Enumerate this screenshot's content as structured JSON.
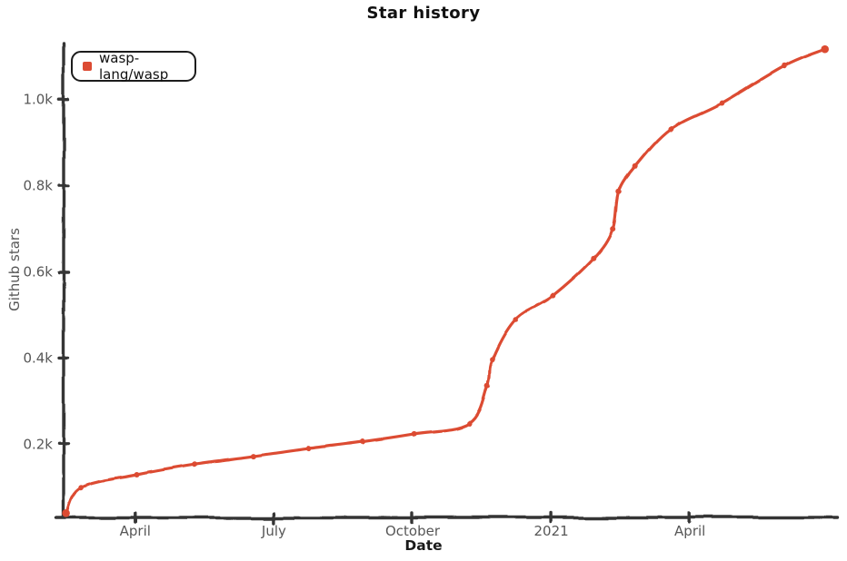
{
  "title": "Star history",
  "legend": {
    "items": [
      {
        "label": "wasp-lang/wasp",
        "color": "#dc4b33"
      }
    ]
  },
  "axes": {
    "x_label": "Date",
    "y_label": "Github stars"
  },
  "chart_data": {
    "type": "line",
    "title": "Star history",
    "xlabel": "Date",
    "ylabel": "Github stars",
    "grid": false,
    "legend_position": "top-left",
    "style": "xkcd-hand-drawn",
    "colors": {
      "series": "#dc4b33",
      "axis": "#343434",
      "tick_label": "#575757",
      "axis_label": "#1a1a1a",
      "title": "#111111",
      "background": "#ffffff"
    },
    "x_ticks": [
      {
        "label": "April",
        "date": "2020-04-01"
      },
      {
        "label": "July",
        "date": "2020-07-01"
      },
      {
        "label": "October",
        "date": "2020-10-01"
      },
      {
        "label": "2021",
        "date": "2021-01-01"
      },
      {
        "label": "April",
        "date": "2021-04-01"
      }
    ],
    "y_ticks": [
      {
        "label": "0.2k",
        "value": 200
      },
      {
        "label": "0.4k",
        "value": 400
      },
      {
        "label": "0.6k",
        "value": 600
      },
      {
        "label": "0.8k",
        "value": 800
      },
      {
        "label": "1.0k",
        "value": 1000
      }
    ],
    "xlim_months_since_2020_01": [
      1.45,
      18.2
    ],
    "ylim": [
      30,
      1130
    ],
    "series": [
      {
        "name": "wasp-lang/wasp",
        "color": "#dc4b33",
        "points": [
          {
            "date": "2020-02-16",
            "stars": 40
          },
          {
            "date": "2020-02-26",
            "stars": 100
          },
          {
            "date": "2020-04-02",
            "stars": 130
          },
          {
            "date": "2020-05-10",
            "stars": 154
          },
          {
            "date": "2020-06-18",
            "stars": 172
          },
          {
            "date": "2020-07-24",
            "stars": 190
          },
          {
            "date": "2020-08-29",
            "stars": 206
          },
          {
            "date": "2020-10-02",
            "stars": 224
          },
          {
            "date": "2020-11-08",
            "stars": 248
          },
          {
            "date": "2020-11-20",
            "stars": 336
          },
          {
            "date": "2020-11-23",
            "stars": 396
          },
          {
            "date": "2020-12-08",
            "stars": 490
          },
          {
            "date": "2021-01-02",
            "stars": 545
          },
          {
            "date": "2021-01-29",
            "stars": 632
          },
          {
            "date": "2021-02-11",
            "stars": 700
          },
          {
            "date": "2021-02-15",
            "stars": 786
          },
          {
            "date": "2021-02-26",
            "stars": 845
          },
          {
            "date": "2021-03-19",
            "stars": 932
          },
          {
            "date": "2021-04-22",
            "stars": 992
          },
          {
            "date": "2021-06-02",
            "stars": 1078
          },
          {
            "date": "2021-06-29",
            "stars": 1117
          }
        ]
      }
    ]
  }
}
